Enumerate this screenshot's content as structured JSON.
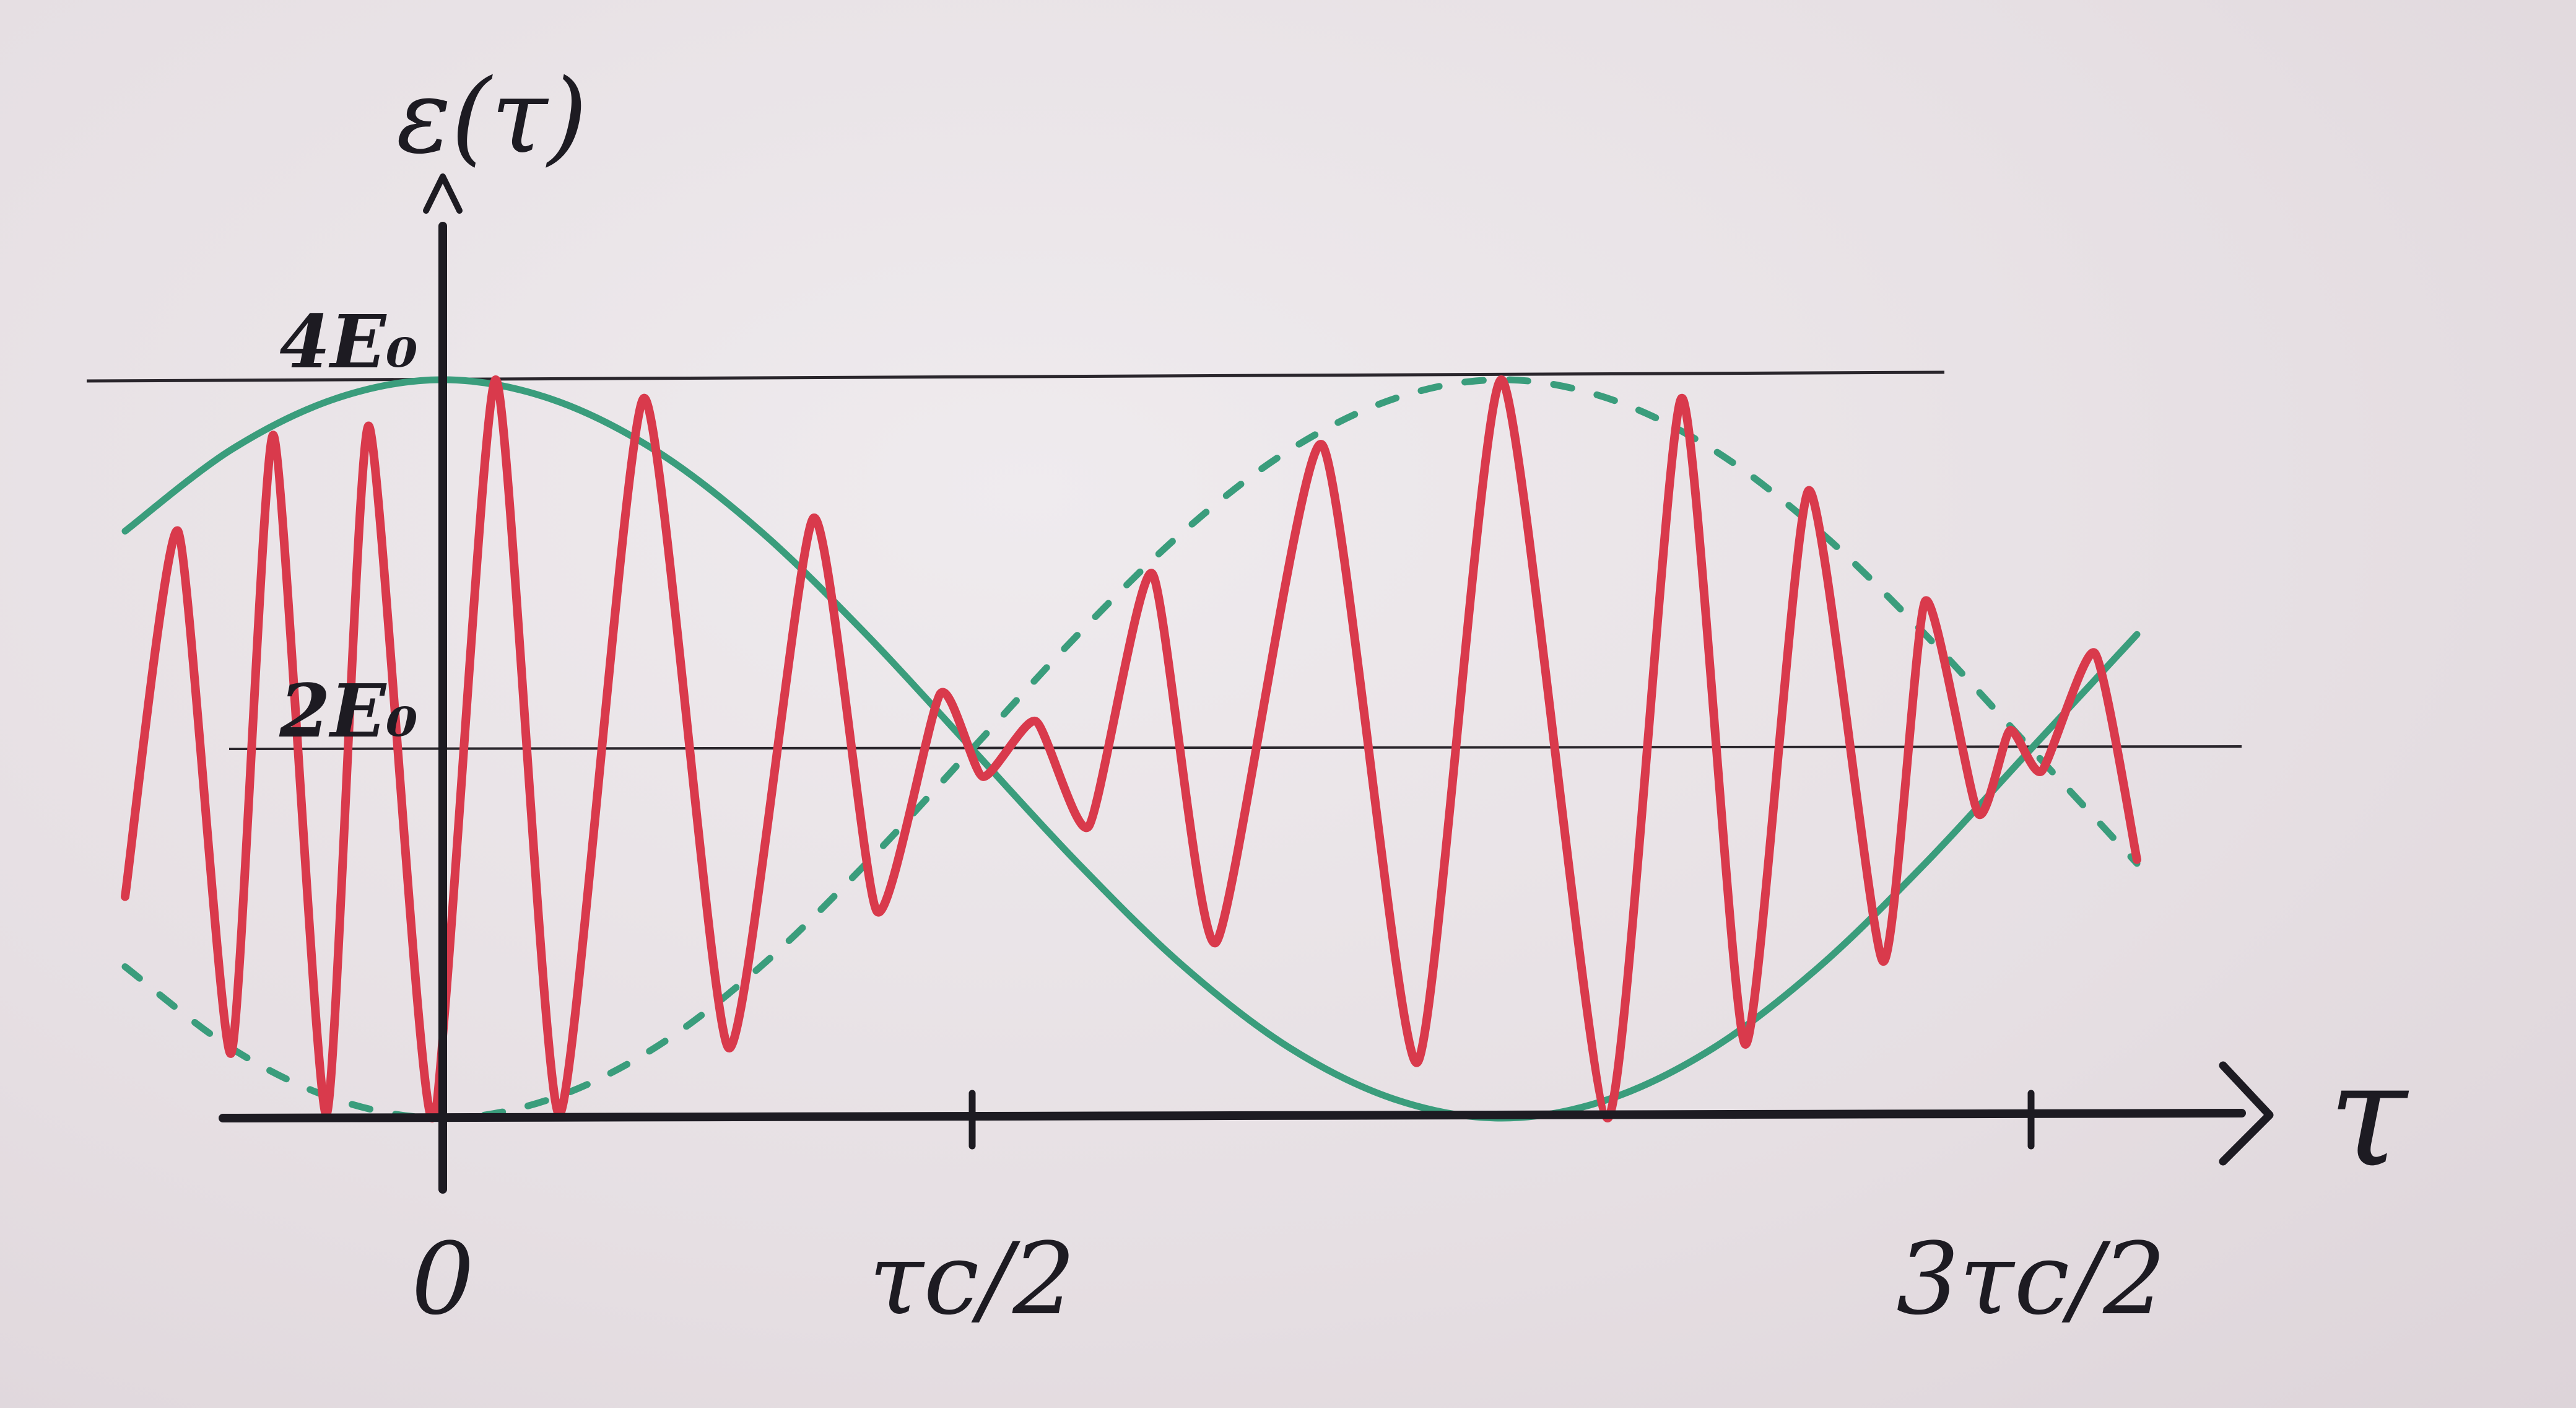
{
  "chart_data": {
    "type": "line",
    "title": "",
    "ylabel": "ε(τ)",
    "xlabel": "τ",
    "x_ticks": [
      {
        "value": 0,
        "label": "0"
      },
      {
        "value": 0.5,
        "label": "τc/2"
      },
      {
        "value": 1.5,
        "label": "3τc/2"
      }
    ],
    "y_ticks": [
      {
        "value": 2,
        "label": "2E₀"
      },
      {
        "value": 4,
        "label": "4E₀"
      }
    ],
    "xlim": [
      -0.31,
      1.61
    ],
    "ylim": [
      0,
      4
    ],
    "baseline": 2,
    "grid": false,
    "legend": "none",
    "series": [
      {
        "kind": "envelope-upper",
        "color": "#3a9d7c",
        "style": "solid",
        "x": [
          -0.3,
          -0.2,
          -0.1,
          0.0,
          0.1,
          0.2,
          0.3,
          0.4,
          0.5,
          0.6,
          0.7,
          0.8,
          0.9,
          1.0,
          1.1,
          1.2,
          1.3,
          1.4,
          1.5,
          1.6
        ],
        "y": [
          3.18,
          3.62,
          3.9,
          4.0,
          3.9,
          3.62,
          3.18,
          2.62,
          2.0,
          1.38,
          0.82,
          0.38,
          0.1,
          0.0,
          0.1,
          0.38,
          0.82,
          1.38,
          2.0,
          2.62
        ]
      },
      {
        "kind": "envelope-lower",
        "color": "#3a9d7c",
        "style": "dashed",
        "x": [
          -0.3,
          -0.2,
          -0.1,
          0.0,
          0.1,
          0.2,
          0.3,
          0.4,
          0.5,
          0.6,
          0.7,
          0.8,
          0.9,
          1.0,
          1.1,
          1.2,
          1.3,
          1.4,
          1.5,
          1.6
        ],
        "y": [
          0.82,
          0.38,
          0.1,
          0.0,
          0.1,
          0.38,
          0.82,
          1.38,
          2.0,
          2.62,
          3.18,
          3.62,
          3.9,
          4.0,
          3.9,
          3.62,
          3.18,
          2.62,
          2.0,
          1.38
        ]
      },
      {
        "kind": "signal",
        "color": "#d93a4c",
        "style": "solid",
        "x": [
          -0.3,
          -0.25,
          -0.2,
          -0.16,
          -0.11,
          -0.07,
          -0.01,
          0.05,
          0.11,
          0.19,
          0.27,
          0.35,
          0.41,
          0.47,
          0.51,
          0.56,
          0.61,
          0.67,
          0.73,
          0.83,
          0.92,
          1.0,
          1.1,
          1.17,
          1.23,
          1.29,
          1.36,
          1.4,
          1.45,
          1.48,
          1.51,
          1.56,
          1.6
        ],
        "y": [
          1.2,
          3.18,
          0.35,
          3.7,
          0.02,
          3.75,
          0.0,
          4.0,
          0.02,
          3.9,
          0.38,
          3.25,
          1.12,
          2.3,
          1.85,
          2.15,
          1.58,
          2.95,
          0.95,
          3.65,
          0.3,
          4.0,
          0.0,
          3.9,
          0.4,
          3.4,
          0.85,
          2.8,
          1.65,
          2.1,
          1.88,
          2.52,
          1.4
        ]
      }
    ]
  }
}
